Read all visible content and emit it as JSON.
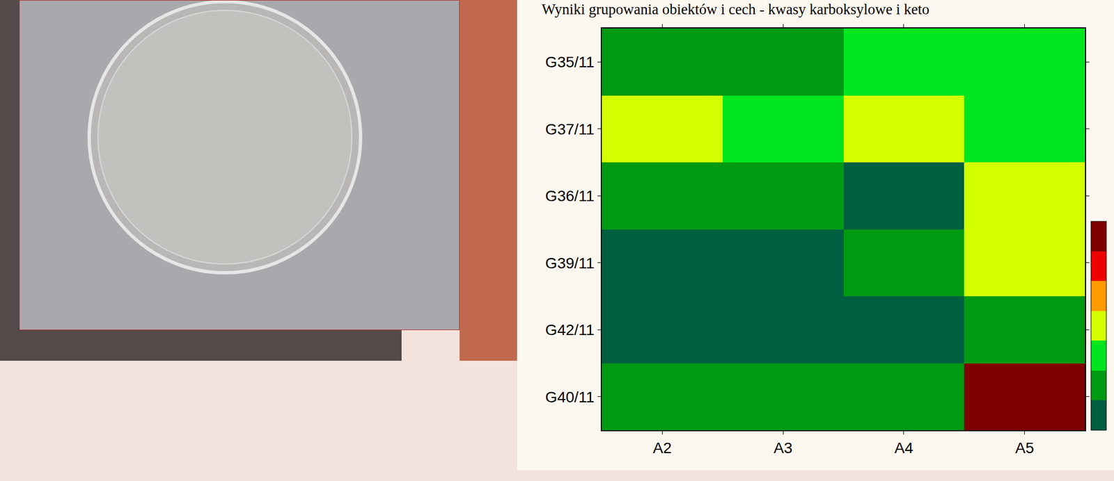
{
  "chart_data": {
    "type": "heatmap",
    "title": "Wyniki grupowania obiektów i cech - kwasy karboksylowe i keto",
    "x": [
      "A2",
      "A3",
      "A4",
      "A5"
    ],
    "y": [
      "G35/11",
      "G37/11",
      "G36/11",
      "G39/11",
      "G42/11",
      "G40/11"
    ],
    "z": [
      [
        1.5,
        1.5,
        2.5,
        2.5
      ],
      [
        3.5,
        2.5,
        3.5,
        2.5
      ],
      [
        1.5,
        1.5,
        0.5,
        3.5
      ],
      [
        0.5,
        0.5,
        1.5,
        3.5
      ],
      [
        0.5,
        0.5,
        0.5,
        1.5
      ],
      [
        1.5,
        1.5,
        1.5,
        6.5
      ]
    ],
    "zlim": [
      0,
      7
    ],
    "colors": [
      "#005f40",
      "#009a12",
      "#00e61e",
      "#d4ff00",
      "#ff9a00",
      "#ee0000",
      "#800000"
    ]
  }
}
